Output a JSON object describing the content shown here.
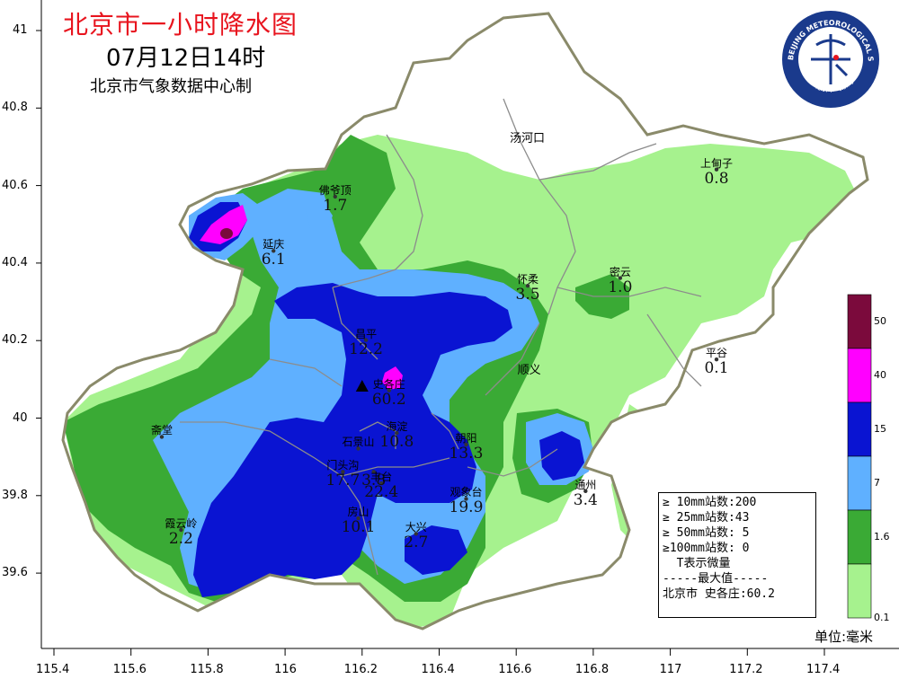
{
  "header": {
    "title": "北京市一小时降水图",
    "time": "07月12日14时",
    "producer": "北京市气象数据中心制"
  },
  "logo": {
    "arc_text": "BEIJING METEOROLOGICAL SERVICE",
    "bottom_text": "北京市气象局",
    "color": "#1a3a8c"
  },
  "axes": {
    "y_ticks": [
      "41",
      "40.8",
      "40.6",
      "40.4",
      "40.2",
      "40",
      "39.8",
      "39.6"
    ],
    "x_ticks": [
      "115.4",
      "115.6",
      "115.8",
      "116",
      "116.2",
      "116.4",
      "116.6",
      "116.8",
      "117",
      "117.2",
      "117.4"
    ]
  },
  "regions": [
    {
      "name": "汤河口",
      "lon": 116.63,
      "lat": 40.73
    },
    {
      "name": "顺义",
      "lon": 116.65,
      "lat": 40.13
    }
  ],
  "stations": [
    {
      "name": "佛爷顶",
      "value": "1.7",
      "lon": 116.13,
      "lat": 40.59
    },
    {
      "name": "延庆",
      "value": "6.1",
      "lon": 115.97,
      "lat": 40.45
    },
    {
      "name": "上甸子",
      "value": "0.8",
      "lon": 117.12,
      "lat": 40.66
    },
    {
      "name": "怀柔",
      "value": "3.5",
      "lon": 116.63,
      "lat": 40.36
    },
    {
      "name": "密云",
      "value": "1.0",
      "lon": 116.87,
      "lat": 40.38
    },
    {
      "name": "昌平",
      "value": "12.2",
      "lon": 116.21,
      "lat": 40.22
    },
    {
      "name": "平谷",
      "value": "0.1",
      "lon": 117.12,
      "lat": 40.17
    },
    {
      "name": "史各庄",
      "value": "60.2",
      "lon": 116.27,
      "lat": 40.09
    },
    {
      "name": "海淀",
      "value": "10.8",
      "lon": 116.29,
      "lat": 39.98
    },
    {
      "name": "石景山",
      "value": "",
      "lon": 116.19,
      "lat": 39.94
    },
    {
      "name": "朝阳",
      "value": "13.3",
      "lon": 116.47,
      "lat": 39.95
    },
    {
      "name": "门头沟",
      "value": "17.7",
      "lon": 116.15,
      "lat": 39.88
    },
    {
      "name": "",
      "value": "3.8",
      "lon": 116.23,
      "lat": 39.88
    },
    {
      "name": "丰台",
      "value": "22.4",
      "lon": 116.25,
      "lat": 39.85
    },
    {
      "name": "通州",
      "value": "3.4",
      "lon": 116.78,
      "lat": 39.83
    },
    {
      "name": "观象台",
      "value": "19.9",
      "lon": 116.47,
      "lat": 39.81
    },
    {
      "name": "房山",
      "value": "10.1",
      "lon": 116.19,
      "lat": 39.76
    },
    {
      "name": "大兴",
      "value": "2.7",
      "lon": 116.34,
      "lat": 39.72
    },
    {
      "name": "霞云岭",
      "value": "2.2",
      "lon": 115.73,
      "lat": 39.73
    },
    {
      "name": "斋堂",
      "value": "",
      "lon": 115.68,
      "lat": 39.97
    }
  ],
  "max_marker": {
    "lon": 116.2,
    "lat": 40.08
  },
  "stats_box": [
    "≥ 10mm站数:200",
    "≥ 25mm站数:43",
    "≥ 50mm站数: 5",
    "≥100mm站数: 0",
    "  T表示微量",
    "-----最大值-----",
    "北京市 史各庄:60.2"
  ],
  "legend": {
    "labels": [
      "50",
      "40",
      "15",
      "7",
      "1.6",
      "0.1"
    ],
    "colors": [
      "#7b0a3c",
      "#ff00ff",
      "#0a14d2",
      "#5fb0ff",
      "#3aaa35",
      "#a6f28e"
    ],
    "unit": "单位:毫米"
  },
  "palette": {
    "outside": "#ffffff",
    "province_fill": "#ffffff",
    "boundary": "#8a8a6a",
    "district_line": "#8c8c8c"
  }
}
